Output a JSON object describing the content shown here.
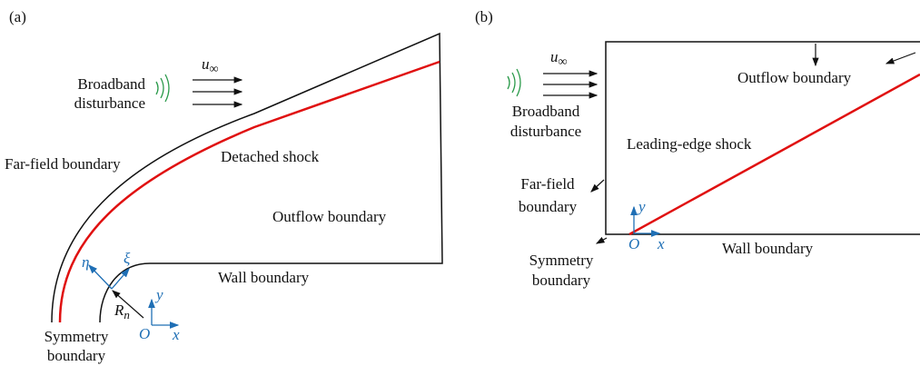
{
  "panels": [
    {
      "tag": "(a)",
      "lines": [
        "Broadband",
        "disturbance",
        "Far-field boundary",
        "Detached shock",
        "Outflow boundary",
        "Wall boundary",
        "Symmetry",
        "boundary"
      ],
      "symbols": {
        "u": "u",
        "inf": "∞",
        "eta": "η",
        "xi": "ξ",
        "y": "y",
        "x": "x",
        "O": "O",
        "R": "R",
        "n": "n"
      }
    },
    {
      "tag": "(b)",
      "lines": [
        "Broadband",
        "disturbance",
        "Outflow boundary",
        "Leading-edge shock",
        "Far-field",
        "boundary",
        "Wall boundary",
        "Symmetry",
        "boundary"
      ],
      "symbols": {
        "u": "u",
        "inf": "∞",
        "y": "y",
        "x": "x",
        "O": "O"
      }
    }
  ]
}
